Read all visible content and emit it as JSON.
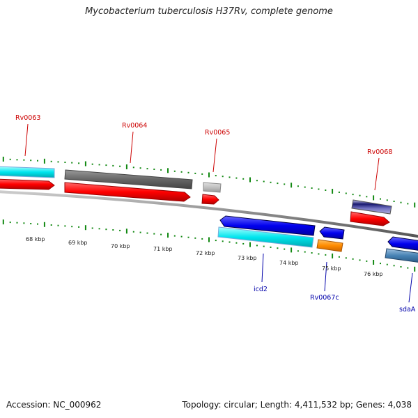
{
  "title": "Mycobacterium tuberculosis H37Rv, complete genome",
  "footer": {
    "accession": "Accession: NC_000962",
    "topology": "Topology: circular; Length: 4,411,532 bp; Genes: 4,038"
  },
  "colors": {
    "forward_cds": "#ff0000",
    "reverse_cds": "#0000ee",
    "cyan_feature": "#00e5ee",
    "orange_feature": "#ff8c00",
    "backbone": "#888888",
    "tick": "#118811",
    "label_forward": "#cc0000",
    "label_reverse": "#0000aa"
  },
  "kbp_labels": [
    "68 kbp",
    "69 kbp",
    "70 kbp",
    "71 kbp",
    "72 kbp",
    "73 kbp",
    "74 kbp",
    "75 kbp",
    "76 kbp"
  ],
  "genes_forward": [
    "Rv0063",
    "Rv0064",
    "Rv0065",
    "Rv0068"
  ],
  "genes_reverse": [
    "icd2",
    "Rv0067c",
    "sdaA"
  ]
}
